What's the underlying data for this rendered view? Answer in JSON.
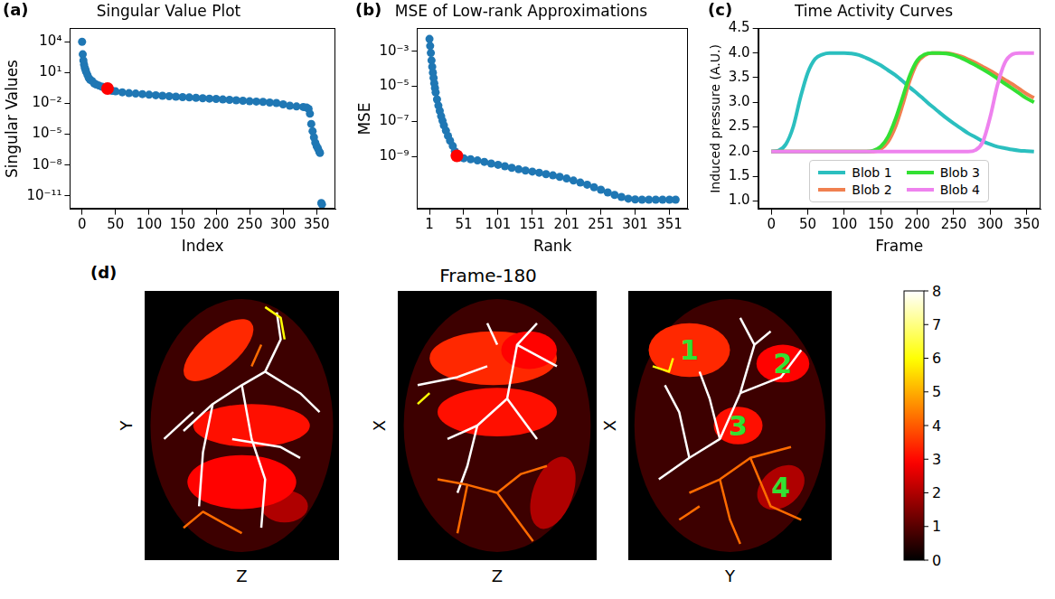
{
  "chart_data": [
    {
      "type": "scatter",
      "panel": "(a)",
      "title": "Singular Value Plot",
      "xlabel": "Index",
      "ylabel": "Singular Values",
      "log": "y",
      "grid": false,
      "xlim": [
        -18,
        378
      ],
      "xticks": [
        0,
        50,
        100,
        150,
        200,
        250,
        300,
        350
      ],
      "ylim": [
        5e-13,
        200000.0
      ],
      "yticks": [
        {
          "value": 10000,
          "label": "10⁴"
        },
        {
          "value": 10,
          "label": "10¹"
        },
        {
          "value": 0.01,
          "label": "10⁻²"
        },
        {
          "value": 1e-05,
          "label": "10⁻⁵"
        },
        {
          "value": 1e-08,
          "label": "10⁻⁸"
        },
        {
          "value": 1e-11,
          "label": "10⁻¹¹"
        }
      ],
      "series": [
        {
          "color": "#1f77b4",
          "marker": "circle",
          "x": [
            0,
            1,
            2,
            3,
            4,
            5,
            6,
            8,
            10,
            12,
            15,
            18,
            21,
            25,
            30,
            35,
            40,
            45,
            50,
            60,
            70,
            80,
            90,
            100,
            110,
            120,
            130,
            140,
            150,
            160,
            170,
            180,
            190,
            200,
            210,
            220,
            230,
            240,
            250,
            260,
            270,
            280,
            290,
            300,
            310,
            320,
            330,
            335,
            338,
            340,
            342,
            344,
            346,
            348,
            350,
            352,
            354,
            355,
            357,
            358
          ],
          "values": [
            10000,
            600,
            150,
            60,
            30,
            20,
            12,
            6,
            3,
            2,
            1.5,
            0.9,
            0.7,
            0.55,
            0.42,
            0.33,
            0.2,
            0.17,
            0.15,
            0.12,
            0.1,
            0.09,
            0.08,
            0.07,
            0.062,
            0.055,
            0.05,
            0.045,
            0.041,
            0.038,
            0.035,
            0.032,
            0.029,
            0.027,
            0.024,
            0.022,
            0.02,
            0.018,
            0.016,
            0.015,
            0.014,
            0.012,
            0.011,
            0.008,
            0.006,
            0.005,
            0.0045,
            0.004,
            0.003,
            0.001,
            0.0001,
            2e-05,
            5e-06,
            1.5e-06,
            7e-07,
            4e-07,
            2e-07,
            1.5e-07,
            2e-12,
            1.5e-12
          ]
        },
        {
          "color": "#ff0000",
          "marker": "circle",
          "x": [
            38
          ],
          "values": [
            0.28
          ]
        }
      ]
    },
    {
      "type": "scatter",
      "panel": "(b)",
      "title": "MSE of Low-rank Approximations",
      "xlabel": "Rank",
      "ylabel": "MSE",
      "log": "y",
      "grid": false,
      "xlim": [
        -17,
        378
      ],
      "xticks": [
        1,
        51,
        101,
        151,
        201,
        251,
        301,
        351
      ],
      "ylim": [
        1e-12,
        0.02
      ],
      "yticks": [
        {
          "value": 0.001,
          "label": "10⁻³"
        },
        {
          "value": 1e-05,
          "label": "10⁻⁵"
        },
        {
          "value": 1e-07,
          "label": "10⁻⁷"
        },
        {
          "value": 1e-09,
          "label": "10⁻⁹"
        }
      ],
      "series": [
        {
          "color": "#1f77b4",
          "marker": "circle",
          "x": [
            1,
            2,
            3,
            4,
            5,
            6,
            7,
            8,
            9,
            10,
            12,
            14,
            16,
            18,
            20,
            22,
            25,
            28,
            31,
            35,
            38,
            41,
            45,
            51,
            61,
            71,
            81,
            91,
            101,
            111,
            121,
            131,
            141,
            151,
            161,
            171,
            181,
            191,
            201,
            211,
            221,
            231,
            241,
            251,
            261,
            271,
            281,
            291,
            301,
            311,
            321,
            331,
            341,
            351,
            360
          ],
          "values": [
            0.005,
            0.002,
            0.0008,
            0.0003,
            0.00013,
            6e-05,
            3e-05,
            1.5e-05,
            8e-06,
            4.5e-06,
            1.8e-06,
            8e-07,
            4e-07,
            2e-07,
            1.1e-07,
            6e-08,
            3e-08,
            1.5e-08,
            8e-09,
            4e-09,
            2e-09,
            1.1e-09,
            9e-10,
            8e-10,
            7e-10,
            6e-10,
            5e-10,
            4e-10,
            3.4e-10,
            2.8e-10,
            2.3e-10,
            1.9e-10,
            1.6e-10,
            1.4e-10,
            1.2e-10,
            1e-10,
            8.5e-11,
            7e-11,
            5.6e-11,
            4.3e-11,
            3.3e-11,
            2.5e-11,
            1.8e-11,
            1.3e-11,
            9e-12,
            6.5e-12,
            5e-12,
            4e-12,
            3.6e-12,
            3.5e-12,
            3.5e-12,
            3.5e-12,
            3.5e-12,
            3.5e-12,
            3.5e-12
          ]
        },
        {
          "color": "#ff0000",
          "marker": "circle",
          "x": [
            41
          ],
          "values": [
            1.1e-09
          ]
        }
      ]
    },
    {
      "type": "line",
      "panel": "(c)",
      "title": "Time Activity Curves",
      "xlabel": "Frame",
      "ylabel": "Induced pressure (A.U.)",
      "grid": false,
      "legend": "lower center",
      "xlim": [
        -18,
        369
      ],
      "xticks": [
        0,
        50,
        100,
        150,
        200,
        250,
        300,
        350
      ],
      "ylim": [
        0.83,
        4.5
      ],
      "yticks": [
        {
          "value": 1,
          "label": "1.0"
        },
        1.5,
        {
          "value": 2,
          "label": "2.0"
        },
        2.5,
        {
          "value": 3,
          "label": "3.0"
        },
        3.5,
        {
          "value": 4,
          "label": "4.0"
        },
        4.5
      ],
      "x": [
        0,
        10,
        20,
        30,
        40,
        50,
        60,
        70,
        80,
        90,
        100,
        110,
        120,
        130,
        140,
        150,
        160,
        170,
        180,
        190,
        200,
        210,
        220,
        230,
        240,
        250,
        260,
        270,
        280,
        290,
        300,
        310,
        320,
        330,
        340,
        350,
        360
      ],
      "series": [
        {
          "name": "Blob 1",
          "color": "#2bbfbf",
          "line_style": "solid",
          "values": [
            2.0,
            2.02,
            2.15,
            2.5,
            3.1,
            3.6,
            3.88,
            3.97,
            4.0,
            4.0,
            4.0,
            3.99,
            3.96,
            3.9,
            3.83,
            3.75,
            3.65,
            3.55,
            3.43,
            3.3,
            3.18,
            3.05,
            2.92,
            2.8,
            2.68,
            2.57,
            2.47,
            2.37,
            2.29,
            2.21,
            2.15,
            2.1,
            2.07,
            2.04,
            2.02,
            2.01,
            2.0
          ]
        },
        {
          "name": "Blob 2",
          "color": "#f08050",
          "line_style": "solid",
          "values": [
            2.0,
            2.0,
            2.0,
            2.0,
            2.0,
            2.0,
            2.0,
            2.0,
            2.0,
            2.0,
            2.0,
            2.0,
            2.0,
            2.0,
            2.0,
            2.05,
            2.2,
            2.5,
            2.95,
            3.45,
            3.8,
            3.95,
            4.0,
            4.0,
            4.0,
            3.97,
            3.93,
            3.87,
            3.8,
            3.72,
            3.64,
            3.55,
            3.46,
            3.37,
            3.27,
            3.17,
            3.09
          ]
        },
        {
          "name": "Blob 3",
          "color": "#33e033",
          "line_style": "solid",
          "values": [
            2.0,
            2.0,
            2.0,
            2.0,
            2.0,
            2.0,
            2.0,
            2.0,
            2.0,
            2.0,
            2.0,
            2.0,
            2.0,
            2.0,
            2.02,
            2.1,
            2.3,
            2.65,
            3.1,
            3.55,
            3.85,
            3.97,
            4.0,
            4.0,
            3.99,
            3.96,
            3.9,
            3.83,
            3.75,
            3.67,
            3.58,
            3.48,
            3.38,
            3.28,
            3.18,
            3.08,
            3.0
          ]
        },
        {
          "name": "Blob 4",
          "color": "#ee82ee",
          "line_style": "solid",
          "values": [
            2.0,
            2.0,
            2.0,
            2.0,
            2.0,
            2.0,
            2.0,
            2.0,
            2.0,
            2.0,
            2.0,
            2.0,
            2.0,
            2.0,
            2.0,
            2.0,
            2.0,
            2.0,
            2.0,
            2.0,
            2.0,
            2.0,
            2.0,
            2.0,
            2.0,
            2.0,
            2.0,
            2.0,
            2.03,
            2.2,
            2.7,
            3.35,
            3.8,
            3.97,
            4.0,
            4.0,
            4.0
          ]
        }
      ]
    }
  ],
  "image_panel": {
    "panel": "(d)",
    "title": "Frame-180",
    "views": [
      {
        "xlabel": "Z",
        "ylabel": "Y"
      },
      {
        "xlabel": "Z",
        "ylabel": "X"
      },
      {
        "xlabel": "Y",
        "ylabel": "X"
      }
    ],
    "blobs": [
      {
        "label": "1",
        "value": 3.4
      },
      {
        "label": "2",
        "value": 2.95
      },
      {
        "label": "3",
        "value": 3.1
      },
      {
        "label": "4",
        "value": 2.0
      }
    ],
    "background_value": 0.7,
    "vessel_values": [
      8,
      4.2,
      6
    ],
    "colorbar": {
      "range": [
        0,
        8
      ],
      "ticks": [
        0,
        1,
        2,
        3,
        4,
        5,
        6,
        7,
        8
      ]
    }
  }
}
